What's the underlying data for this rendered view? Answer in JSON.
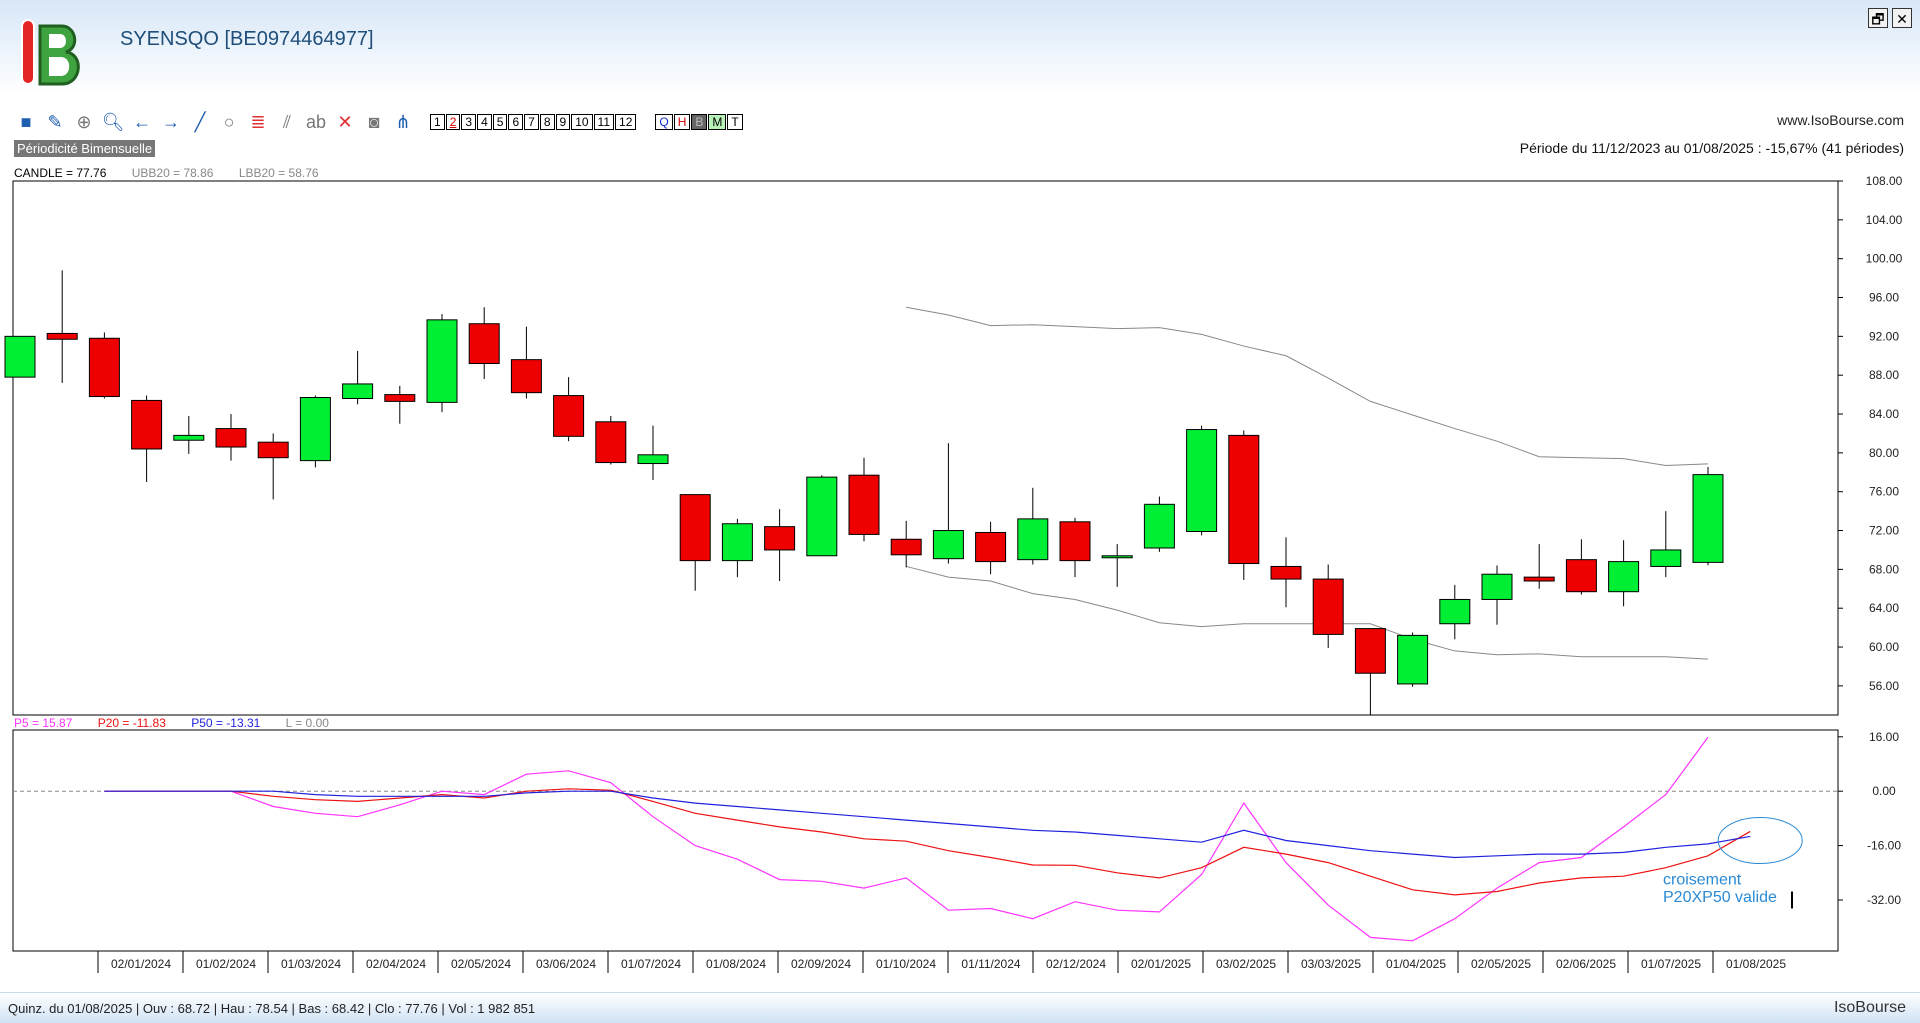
{
  "window": {
    "title": "SYENSQO [BE0974464977]",
    "restore_label": "🗗",
    "close_label": "✕"
  },
  "toolbar": {
    "tools": [
      "square-icon",
      "pencil-icon",
      "crosshair-icon",
      "zoom-icon",
      "arrow-left-icon",
      "arrow-right-icon",
      "line-icon",
      "circle-icon",
      "fibonacci-icon",
      "channel-icon",
      "text-icon",
      "delete-icon",
      "camera-icon",
      "tree-icon"
    ],
    "text_tool_label": "ab",
    "number_buttons": [
      "1",
      "2",
      "3",
      "4",
      "5",
      "6",
      "7",
      "8",
      "9",
      "10",
      "11",
      "12"
    ],
    "active_number": "2",
    "period_buttons": [
      "Q",
      "H",
      "B",
      "M",
      "T"
    ]
  },
  "site": "www.IsoBourse.com",
  "periodicity": "Périodicité Bimensuelle",
  "periode": "Période du 11/12/2023 au 01/08/2025 : -15,67% (41 périodes)",
  "legend_price": {
    "candle": "CANDLE = 77.76",
    "ubb": "UBB20 = 78.86",
    "lbb": "LBB20 = 58.76"
  },
  "legend_perf": {
    "p5": "P5 = 15.87",
    "p20": "P20 = -11.83",
    "p50": "P50 = -13.31",
    "l": "L = 0.00"
  },
  "annotation": {
    "line1": "croisement",
    "line2": "P20XP50 valide"
  },
  "status": {
    "left": "Quinz. du 01/08/2025 | Ouv : 68.72 | Hau : 78.54 | Bas : 68.42 | Clo : 77.76 | Vol : 1 982 851",
    "right": "IsoBourse"
  },
  "colors": {
    "up": "#00ee33",
    "down": "#ee0000",
    "bollinger": "#888888",
    "p5": "#ff33ff",
    "p20": "#ee1111",
    "p50": "#2222dd",
    "annotation": "#2a8ad4"
  },
  "chart_data": [
    {
      "type": "candlestick",
      "ylim": [
        53,
        108
      ],
      "yticks": [
        "108.00",
        "104.00",
        "100.00",
        "96.00",
        "92.00",
        "88.00",
        "84.00",
        "80.00",
        "76.00",
        "72.00",
        "68.00",
        "64.00",
        "60.00",
        "56.00"
      ],
      "ytick_values": [
        108,
        104,
        100,
        96,
        92,
        88,
        84,
        80,
        76,
        72,
        68,
        64,
        60,
        56
      ],
      "x_labels": [
        "02/01/2024",
        "01/02/2024",
        "01/03/2024",
        "02/04/2024",
        "02/05/2024",
        "03/06/2024",
        "01/07/2024",
        "01/08/2024",
        "02/09/2024",
        "01/10/2024",
        "01/11/2024",
        "02/12/2024",
        "02/01/2025",
        "03/02/2025",
        "03/03/2025",
        "01/04/2025",
        "02/05/2025",
        "02/06/2025",
        "01/07/2025",
        "01/08/2025"
      ],
      "candles": [
        {
          "o": 87.8,
          "h": 92.0,
          "l": 87.8,
          "c": 92.0
        },
        {
          "o": 92.3,
          "h": 98.8,
          "l": 87.2,
          "c": 91.7
        },
        {
          "o": 91.8,
          "h": 92.4,
          "l": 85.6,
          "c": 85.8
        },
        {
          "o": 85.4,
          "h": 85.9,
          "l": 77.0,
          "c": 80.4
        },
        {
          "o": 81.3,
          "h": 83.8,
          "l": 79.9,
          "c": 81.8
        },
        {
          "o": 82.5,
          "h": 84.0,
          "l": 79.2,
          "c": 80.6
        },
        {
          "o": 81.1,
          "h": 82.0,
          "l": 75.2,
          "c": 79.5
        },
        {
          "o": 79.2,
          "h": 85.9,
          "l": 78.5,
          "c": 85.7
        },
        {
          "o": 85.6,
          "h": 90.5,
          "l": 85.0,
          "c": 87.1
        },
        {
          "o": 86.0,
          "h": 86.9,
          "l": 83.0,
          "c": 85.3
        },
        {
          "o": 85.2,
          "h": 94.3,
          "l": 84.2,
          "c": 93.7
        },
        {
          "o": 93.3,
          "h": 95.0,
          "l": 87.6,
          "c": 89.2
        },
        {
          "o": 89.6,
          "h": 93.0,
          "l": 85.6,
          "c": 86.2
        },
        {
          "o": 85.9,
          "h": 87.8,
          "l": 81.2,
          "c": 81.7
        },
        {
          "o": 83.2,
          "h": 83.8,
          "l": 78.8,
          "c": 79.0
        },
        {
          "o": 78.9,
          "h": 82.8,
          "l": 77.2,
          "c": 79.8
        },
        {
          "o": 75.7,
          "h": 75.7,
          "l": 65.8,
          "c": 68.9
        },
        {
          "o": 68.9,
          "h": 73.2,
          "l": 67.2,
          "c": 72.7
        },
        {
          "o": 72.4,
          "h": 74.2,
          "l": 66.8,
          "c": 70.0
        },
        {
          "o": 69.4,
          "h": 77.7,
          "l": 69.4,
          "c": 77.5
        },
        {
          "o": 77.7,
          "h": 79.5,
          "l": 70.9,
          "c": 71.6
        },
        {
          "o": 71.1,
          "h": 73.0,
          "l": 68.2,
          "c": 69.5
        },
        {
          "o": 69.1,
          "h": 81.0,
          "l": 68.6,
          "c": 72.0
        },
        {
          "o": 71.8,
          "h": 72.9,
          "l": 67.5,
          "c": 68.8
        },
        {
          "o": 69.0,
          "h": 76.4,
          "l": 68.5,
          "c": 73.2
        },
        {
          "o": 72.9,
          "h": 73.3,
          "l": 67.2,
          "c": 68.9
        },
        {
          "o": 69.4,
          "h": 70.6,
          "l": 66.2,
          "c": 69.4
        },
        {
          "o": 70.2,
          "h": 75.5,
          "l": 69.8,
          "c": 74.7
        },
        {
          "o": 71.9,
          "h": 82.8,
          "l": 71.5,
          "c": 82.4
        },
        {
          "o": 81.8,
          "h": 82.3,
          "l": 66.9,
          "c": 68.6
        },
        {
          "o": 68.3,
          "h": 71.3,
          "l": 64.1,
          "c": 67.0
        },
        {
          "o": 67.0,
          "h": 68.5,
          "l": 59.9,
          "c": 61.3
        },
        {
          "o": 61.9,
          "h": 61.9,
          "l": 53.0,
          "c": 57.3
        },
        {
          "o": 56.2,
          "h": 61.5,
          "l": 55.9,
          "c": 61.2
        },
        {
          "o": 62.4,
          "h": 66.4,
          "l": 60.8,
          "c": 64.9
        },
        {
          "o": 64.9,
          "h": 68.4,
          "l": 62.3,
          "c": 67.5
        },
        {
          "o": 67.2,
          "h": 70.6,
          "l": 66.0,
          "c": 66.8
        },
        {
          "o": 69.0,
          "h": 71.1,
          "l": 65.4,
          "c": 65.7
        },
        {
          "o": 65.7,
          "h": 71.0,
          "l": 64.2,
          "c": 68.8
        },
        {
          "o": 68.3,
          "h": 74.0,
          "l": 67.2,
          "c": 70.0
        },
        {
          "o": 68.72,
          "h": 78.54,
          "l": 68.42,
          "c": 77.76
        }
      ],
      "series": [
        {
          "name": "UBB20",
          "start_index": 20,
          "values": [
            95.0,
            94.2,
            93.1,
            93.2,
            93.0,
            92.8,
            92.9,
            92.2,
            91.0,
            90.0,
            87.7,
            85.3,
            83.9,
            82.5,
            81.2,
            79.6,
            79.5,
            79.4,
            78.7,
            78.86
          ]
        },
        {
          "name": "LBB20",
          "start_index": 20,
          "values": [
            68.3,
            67.2,
            66.8,
            65.5,
            64.9,
            63.8,
            62.5,
            62.1,
            62.4,
            62.4,
            62.4,
            62.4,
            60.8,
            59.6,
            59.2,
            59.3,
            59.0,
            59.0,
            59.0,
            58.76
          ]
        }
      ]
    },
    {
      "type": "line",
      "ylim": [
        -47,
        18
      ],
      "yticks": [
        "16.00",
        "0.00",
        "-16.00",
        "-32.00"
      ],
      "ytick_values": [
        16,
        0,
        -16,
        -32
      ],
      "reference_line": 0,
      "series": [
        {
          "name": "P5",
          "values": [
            0,
            0,
            0,
            0,
            -4.5,
            -6.5,
            -7.5,
            -4,
            0,
            -1,
            5,
            6,
            2.5,
            -7.5,
            -16,
            -20,
            -26,
            -26.5,
            -28.5,
            -25.5,
            -35,
            -34.5,
            -37.5,
            -32.5,
            -35,
            -35.5,
            -24.5,
            -3.5,
            -21,
            -33.5,
            -43,
            -44,
            -37.5,
            -28.5,
            -21,
            -19.5,
            -10.5,
            -1,
            15.87
          ]
        },
        {
          "name": "P20",
          "values": [
            0,
            0,
            0,
            0,
            -1.5,
            -2.5,
            -3,
            -2,
            -1,
            -2,
            0,
            0.7,
            0.3,
            -3,
            -6.5,
            -8.5,
            -10.5,
            -12,
            -14,
            -14.7,
            -17.5,
            -19.5,
            -21.7,
            -21.8,
            -24,
            -25.5,
            -22.5,
            -16.5,
            -18.5,
            -21,
            -25,
            -29,
            -30.5,
            -29.5,
            -27,
            -25.5,
            -25,
            -22.5,
            -19,
            -11.83
          ]
        },
        {
          "name": "P50",
          "values": [
            0,
            0,
            0,
            0,
            0,
            -1,
            -1.5,
            -1.5,
            -1.5,
            -1.5,
            -0.5,
            0,
            0,
            -2,
            -3.5,
            -4.5,
            -5.5,
            -6.5,
            -7.5,
            -8.5,
            -9.5,
            -10.5,
            -11.5,
            -12,
            -13,
            -14,
            -15,
            -11.5,
            -14.5,
            -16,
            -17.5,
            -18.5,
            -19.5,
            -19,
            -18.5,
            -18.5,
            -18,
            -16.5,
            -15.5,
            -13.31
          ]
        }
      ]
    }
  ]
}
